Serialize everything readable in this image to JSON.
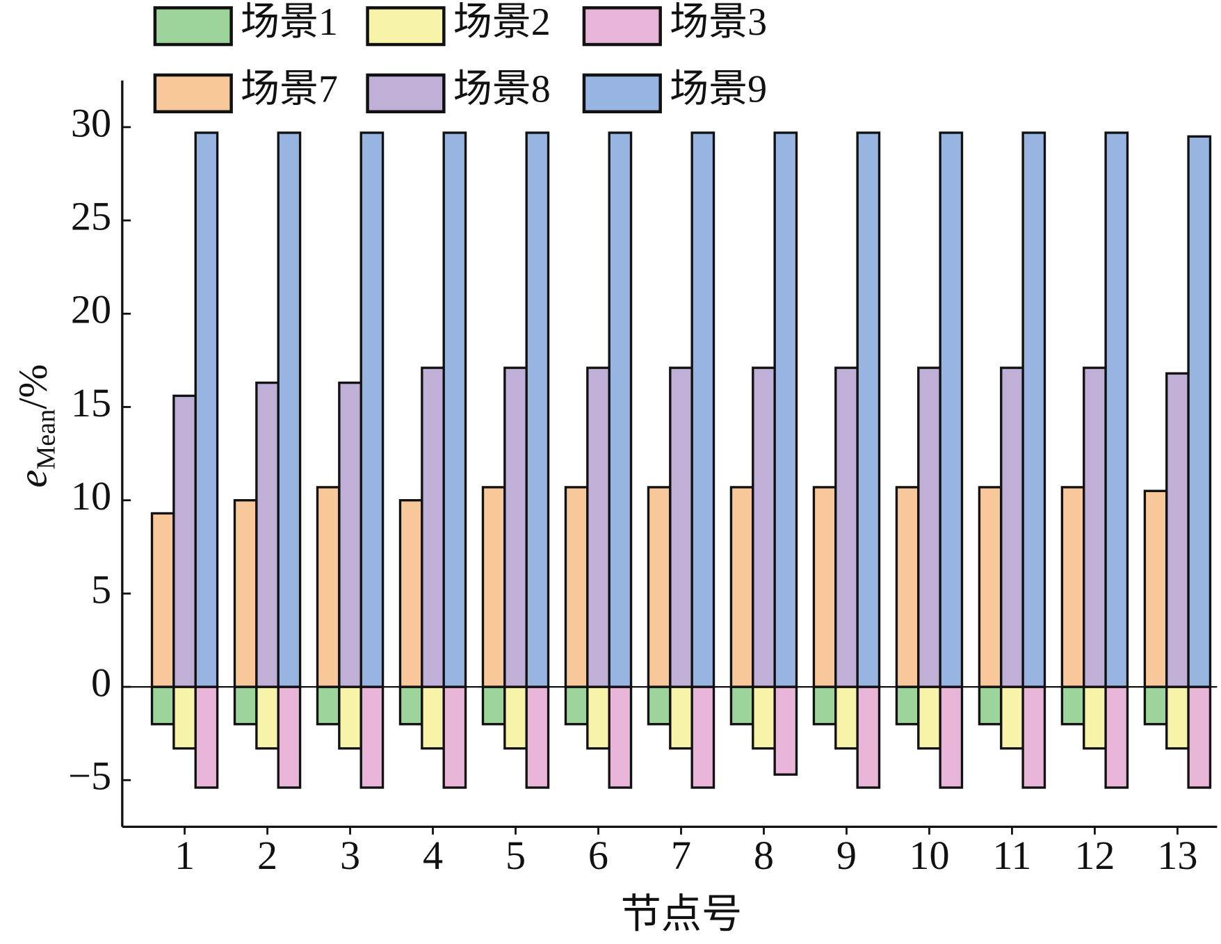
{
  "chart_data": {
    "type": "bar",
    "x_label": "节点号",
    "y_label": [
      "e",
      "Mean",
      "/%"
    ],
    "categories": [
      "1",
      "2",
      "3",
      "4",
      "5",
      "6",
      "7",
      "8",
      "9",
      "10",
      "11",
      "12",
      "13"
    ],
    "series": [
      {
        "name": "场景1",
        "color": "#9dd49b",
        "values": [
          -2,
          -2,
          -2,
          -2,
          -2,
          -2,
          -2,
          -2,
          -2,
          -2,
          -2,
          -2,
          -2
        ]
      },
      {
        "name": "场景2",
        "color": "#f7f3a8",
        "values": [
          -3.3,
          -3.3,
          -3.3,
          -3.3,
          -3.3,
          -3.3,
          -3.3,
          -3.3,
          -3.3,
          -3.3,
          -3.3,
          -3.3,
          -3.3
        ]
      },
      {
        "name": "场景3",
        "color": "#e8b5d8",
        "values": [
          -5.4,
          -5.4,
          -5.4,
          -5.4,
          -5.4,
          -5.4,
          -5.4,
          -4.7,
          -5.4,
          -5.4,
          -5.4,
          -5.4,
          -5.4
        ]
      },
      {
        "name": "场景7",
        "color": "#f8c79a",
        "values": [
          9.3,
          10,
          10.7,
          10,
          10.7,
          10.7,
          10.7,
          10.7,
          10.7,
          10.7,
          10.7,
          10.7,
          10.5
        ]
      },
      {
        "name": "场景8",
        "color": "#c0b0d8",
        "values": [
          15.6,
          16.3,
          16.3,
          17.1,
          17.1,
          17.1,
          17.1,
          17.1,
          17.1,
          17.1,
          17.1,
          17.1,
          16.8
        ]
      },
      {
        "name": "场景9",
        "color": "#98b4e0",
        "values": [
          29.7,
          29.7,
          29.7,
          29.7,
          29.7,
          29.7,
          29.7,
          29.7,
          29.7,
          29.7,
          29.7,
          29.7,
          29.5
        ]
      }
    ],
    "ylim": [
      -7.5,
      32.5
    ],
    "yticks": [
      {
        "value": -5,
        "label": "−5"
      },
      0,
      5,
      10,
      15,
      20,
      25,
      30
    ],
    "legend": "top-left"
  }
}
